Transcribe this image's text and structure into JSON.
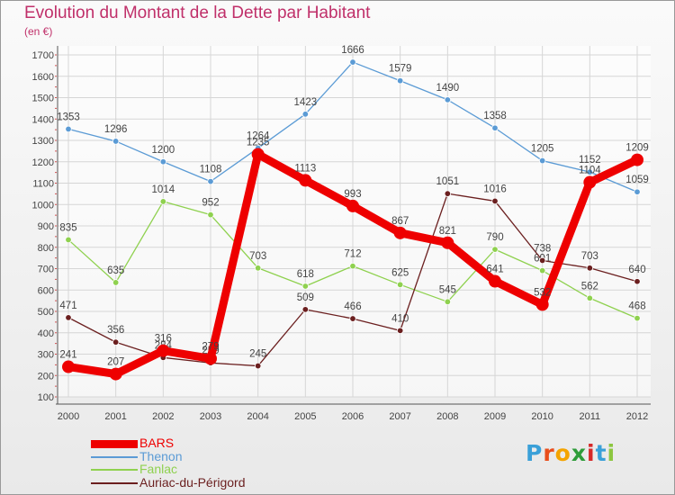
{
  "chart_data": {
    "type": "line",
    "title": "Evolution du Montant de la Dette par Habitant",
    "unit_label": "(en €)",
    "x": [
      "2000",
      "2001",
      "2002",
      "2003",
      "2004",
      "2005",
      "2006",
      "2007",
      "2008",
      "2009",
      "2010",
      "2011",
      "2012"
    ],
    "ylim": [
      100,
      1700
    ],
    "yticks": [
      100,
      200,
      300,
      400,
      500,
      600,
      700,
      800,
      900,
      1000,
      1100,
      1200,
      1300,
      1400,
      1500,
      1600,
      1700
    ],
    "grid": true,
    "legend_position": "bottom-left",
    "series": [
      {
        "name": "BARS",
        "color": "#ee0000",
        "values": [
          241,
          207,
          316,
          279,
          1235,
          1113,
          993,
          867,
          821,
          641,
          532,
          1104,
          1209
        ]
      },
      {
        "name": "Thenon",
        "color": "#5b9bd5",
        "values": [
          1353,
          1296,
          1200,
          1108,
          1264,
          1423,
          1666,
          1579,
          1490,
          1358,
          1205,
          1152,
          1059
        ]
      },
      {
        "name": "Fanlac",
        "color": "#8fd14f",
        "values": [
          835,
          635,
          1014,
          952,
          703,
          618,
          712,
          625,
          545,
          790,
          691,
          562,
          468
        ]
      },
      {
        "name": "Auriac-du-Périgord",
        "color": "#6b1f1f",
        "values": [
          471,
          356,
          284,
          259,
          245,
          509,
          466,
          410,
          1051,
          1016,
          738,
          703,
          640
        ]
      }
    ]
  },
  "brand": {
    "letters": [
      "P",
      "r",
      "o",
      "x",
      "i",
      "t",
      "i"
    ]
  }
}
